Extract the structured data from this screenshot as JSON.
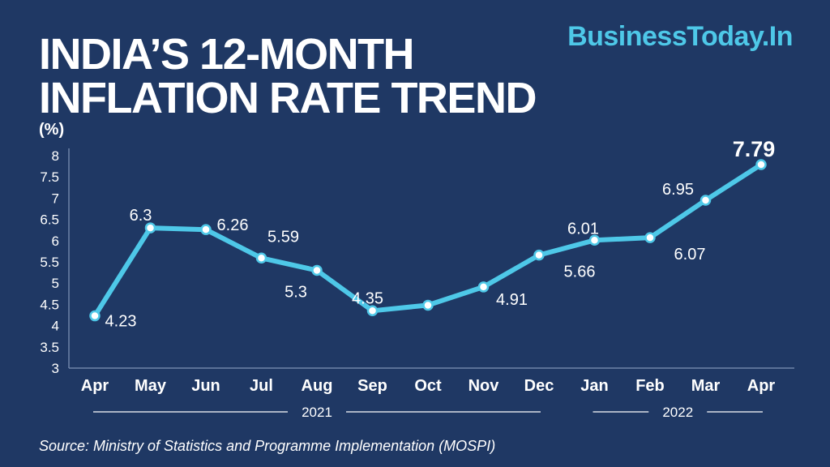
{
  "header": {
    "title_line1": "INDIA’S 12-MONTH",
    "title_line2": "INFLATION RATE TREND",
    "brand": "BusinessToday.In"
  },
  "footer": {
    "source": "Source: Ministry of Statistics and Programme Implementation (MOSPI)"
  },
  "colors": {
    "background": "#1f3864",
    "line": "#4ec8e8",
    "text": "#ffffff",
    "brand": "#4ec8e8",
    "grid": "#6f84a8"
  },
  "chart_data": {
    "type": "line",
    "title": "INDIA’S 12-MONTH INFLATION RATE TREND",
    "ylabel": "(%)",
    "xlabel": "",
    "categories": [
      "Apr",
      "May",
      "Jun",
      "Jul",
      "Aug",
      "Sep",
      "Oct",
      "Nov",
      "Dec",
      "Jan",
      "Feb",
      "Mar",
      "Apr"
    ],
    "values": [
      4.23,
      6.3,
      6.26,
      5.59,
      5.3,
      4.35,
      4.48,
      4.91,
      5.66,
      6.01,
      6.07,
      6.95,
      7.79
    ],
    "data_labels": [
      "4.23",
      "6.3",
      "6.26",
      "5.59",
      "5.3",
      "4.35",
      "",
      "4.91",
      "5.66",
      "6.01",
      "6.07",
      "6.95",
      "7.79"
    ],
    "ylim": [
      3,
      8
    ],
    "yticks": [
      "3",
      "3.5",
      "4",
      "4.5",
      "5",
      "5.5",
      "6",
      "6.5",
      "7",
      "7.5",
      "8"
    ],
    "year_groups": [
      {
        "label": "2021",
        "start": 0,
        "end": 8
      },
      {
        "label": "2022",
        "start": 9,
        "end": 12
      }
    ],
    "grid": false,
    "legend": "none"
  }
}
